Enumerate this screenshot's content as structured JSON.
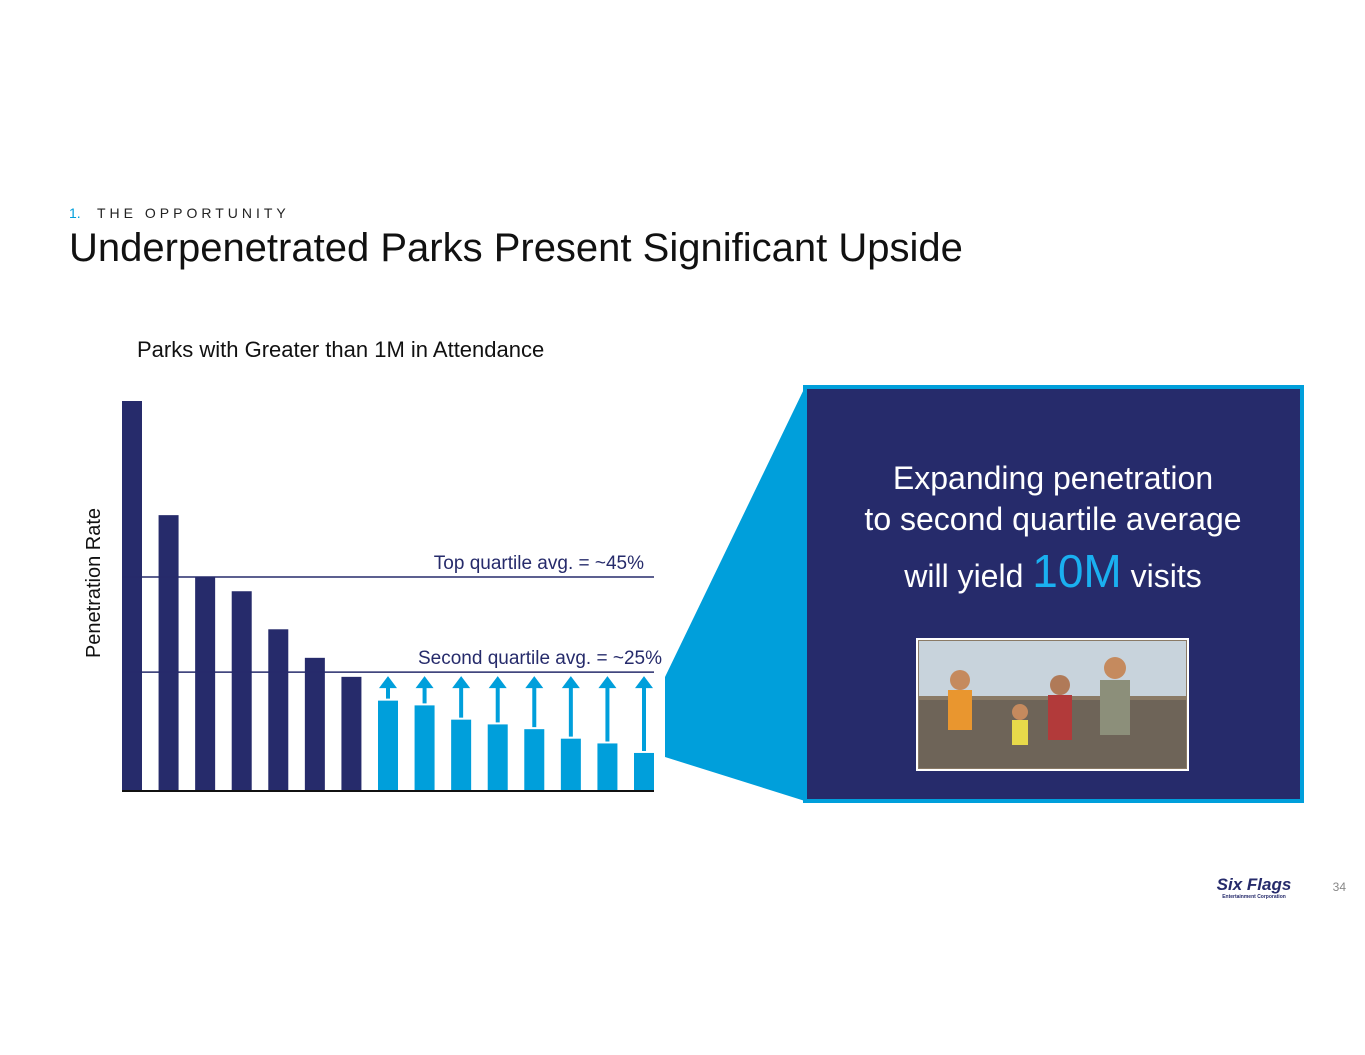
{
  "header": {
    "section_number": "1.",
    "section": "THE OPPORTUNITY",
    "title": "Underpenetrated Parks Present Significant Upside"
  },
  "chart_data": {
    "type": "bar",
    "title": "Parks with Greater than 1M in Attendance",
    "y_label": "Penetration Rate",
    "categories": [
      null,
      null,
      null,
      null,
      null,
      null,
      null,
      null,
      null,
      null,
      null,
      null,
      null,
      null,
      null
    ],
    "values": [
      82,
      58,
      45,
      42,
      34,
      28,
      24,
      19,
      18,
      15,
      14,
      13,
      11,
      10,
      8
    ],
    "colors": [
      "#262b6b",
      "#262b6b",
      "#262b6b",
      "#262b6b",
      "#262b6b",
      "#262b6b",
      "#262b6b",
      "#009fdb",
      "#009fdb",
      "#009fdb",
      "#009fdb",
      "#009fdb",
      "#009fdb",
      "#009fdb",
      "#009fdb"
    ],
    "ylim": [
      0,
      82
    ],
    "reference_lines": [
      {
        "value": 45,
        "label": "Top quartile avg. = ~45%"
      },
      {
        "value": 25,
        "label": "Second quartile avg. = ~25%"
      }
    ]
  },
  "callout": {
    "line1": "Expanding penetration",
    "line2": "to second quartile average",
    "line3_start": "will yield",
    "highlight": "10M",
    "line3_end": "visits"
  },
  "footer": {
    "logo": "Six Flags",
    "logo_sub": "Entertainment Corporation",
    "page": "34"
  }
}
